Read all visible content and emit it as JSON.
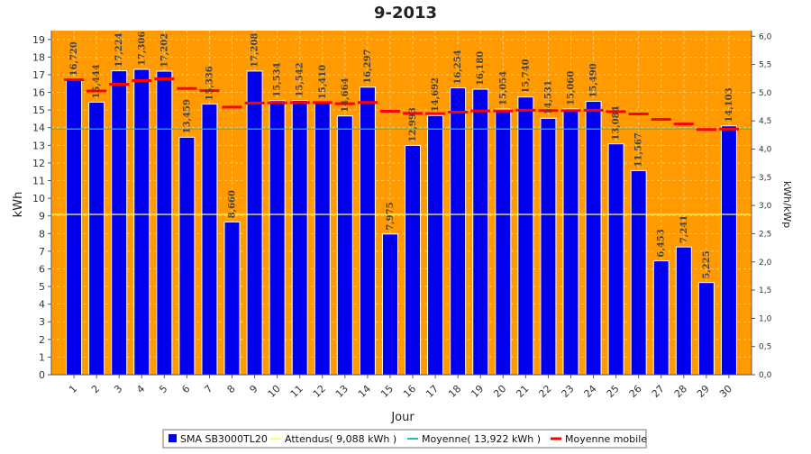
{
  "chart_data": {
    "type": "bar",
    "title": "9-2013",
    "xlabel": "Jour",
    "ylabel": "kWh",
    "y2label": "kWh/kWp",
    "ylim": [
      0,
      19.5
    ],
    "y2lim": [
      0,
      6.1
    ],
    "grid": true,
    "legend_position": "bottom",
    "categories": [
      "1",
      "2",
      "3",
      "4",
      "5",
      "6",
      "7",
      "8",
      "9",
      "10",
      "11",
      "12",
      "13",
      "14",
      "15",
      "16",
      "17",
      "18",
      "19",
      "20",
      "21",
      "22",
      "23",
      "24",
      "25",
      "26",
      "27",
      "28",
      "29",
      "30"
    ],
    "y_ticks": [
      "0",
      "1",
      "2",
      "3",
      "4",
      "5",
      "6",
      "7",
      "8",
      "9",
      "10",
      "11",
      "12",
      "13",
      "14",
      "15",
      "16",
      "17",
      "18",
      "19"
    ],
    "y2_ticks": [
      "0,0",
      "0,5",
      "1,0",
      "1,5",
      "2,0",
      "2,5",
      "3,0",
      "3,5",
      "4,0",
      "4,5",
      "5,0",
      "5,5",
      "6,0"
    ],
    "series": [
      {
        "name": "SMA SB3000TL20",
        "type": "bar",
        "color": "#0000ee",
        "values": [
          16.72,
          15.444,
          17.224,
          17.306,
          17.202,
          13.459,
          15.336,
          8.66,
          17.208,
          15.534,
          15.542,
          15.41,
          14.664,
          16.297,
          7.975,
          12.993,
          14.692,
          16.254,
          16.18,
          15.054,
          15.74,
          14.531,
          15.06,
          15.49,
          13.084,
          11.567,
          6.453,
          7.241,
          5.225,
          14.103
        ],
        "labels": [
          "16,720",
          "15,444",
          "17,224",
          "17,306",
          "17,202",
          "13,459",
          "15,336",
          "8,660",
          "17,208",
          "15,534",
          "15,542",
          "15,410",
          "14,664",
          "16,297",
          "7,975",
          "12,993",
          "14,692",
          "16,254",
          "16,180",
          "15,054",
          "15,740",
          "14,531",
          "15,060",
          "15,490",
          "13,084",
          "11,567",
          "6,453",
          "7,241",
          "5,225",
          "14,103"
        ]
      },
      {
        "name": "Attendus( 9,088 kWh )",
        "type": "line",
        "color": "#ffff66",
        "value": 9.088
      },
      {
        "name": "Moyenne( 13,922 kWh )",
        "type": "line",
        "color": "#20c0c0",
        "value": 13.922
      },
      {
        "name": "Moyenne mobile",
        "type": "line",
        "color": "#ff0000",
        "values": [
          16.72,
          16.08,
          16.46,
          16.67,
          16.77,
          16.22,
          16.1,
          15.17,
          15.4,
          15.41,
          15.42,
          15.42,
          15.36,
          15.43,
          14.93,
          14.81,
          14.8,
          14.88,
          14.95,
          14.95,
          14.99,
          14.97,
          14.97,
          14.99,
          14.91,
          14.78,
          14.47,
          14.21,
          13.9,
          13.92
        ]
      }
    ]
  }
}
